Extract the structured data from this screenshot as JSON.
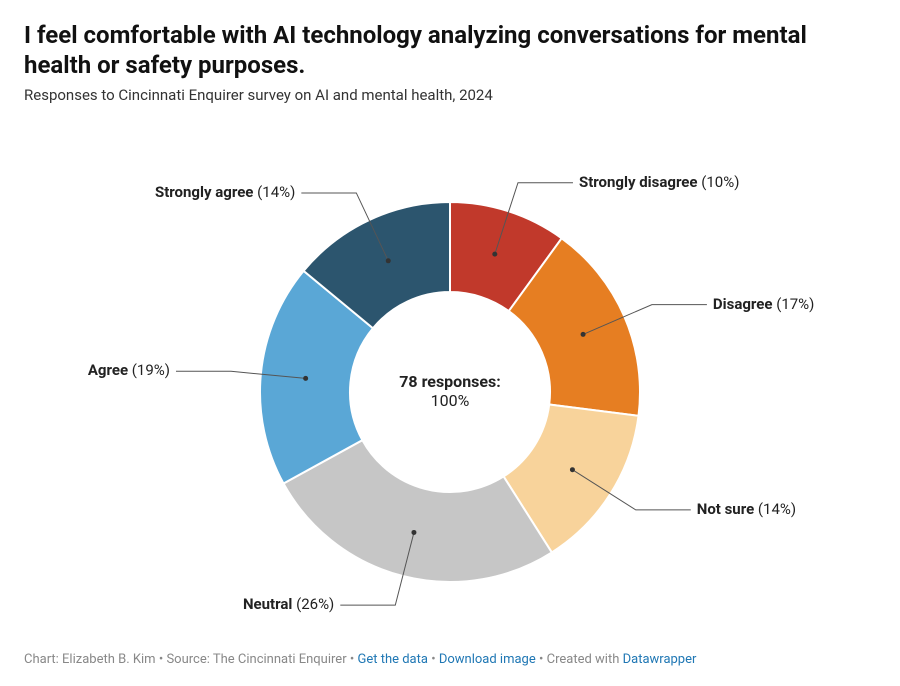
{
  "title": "I feel comfortable with AI technology analyzing conversations for mental health or safety purposes.",
  "subtitle": "Responses to Cincinnati Enquirer survey on AI and mental health, 2024",
  "chart": {
    "type": "donut",
    "background_color": "#ffffff",
    "outer_radius": 190,
    "inner_radius": 100,
    "label_fontsize": 15,
    "center": {
      "line1": "78 responses:",
      "line2": "100%"
    },
    "slices": [
      {
        "label": "Strongly disagree",
        "pct": 10,
        "color": "#c1392b"
      },
      {
        "label": "Disagree",
        "pct": 17,
        "color": "#e67e22"
      },
      {
        "label": "Not sure",
        "pct": 14,
        "color": "#f8d39b"
      },
      {
        "label": "Neutral",
        "pct": 26,
        "color": "#c6c6c6"
      },
      {
        "label": "Agree",
        "pct": 19,
        "color": "#5aa7d6"
      },
      {
        "label": "Strongly agree",
        "pct": 14,
        "color": "#2c556e"
      }
    ]
  },
  "footer": {
    "chart_by_label": "Chart: ",
    "chart_by": "Elizabeth B. Kim",
    "source_label": "Source: ",
    "source": "The Cincinnati Enquirer",
    "link1": "Get the data",
    "link2": "Download image",
    "created_label": "Created with ",
    "created_with": "Datawrapper",
    "separator": " • "
  }
}
